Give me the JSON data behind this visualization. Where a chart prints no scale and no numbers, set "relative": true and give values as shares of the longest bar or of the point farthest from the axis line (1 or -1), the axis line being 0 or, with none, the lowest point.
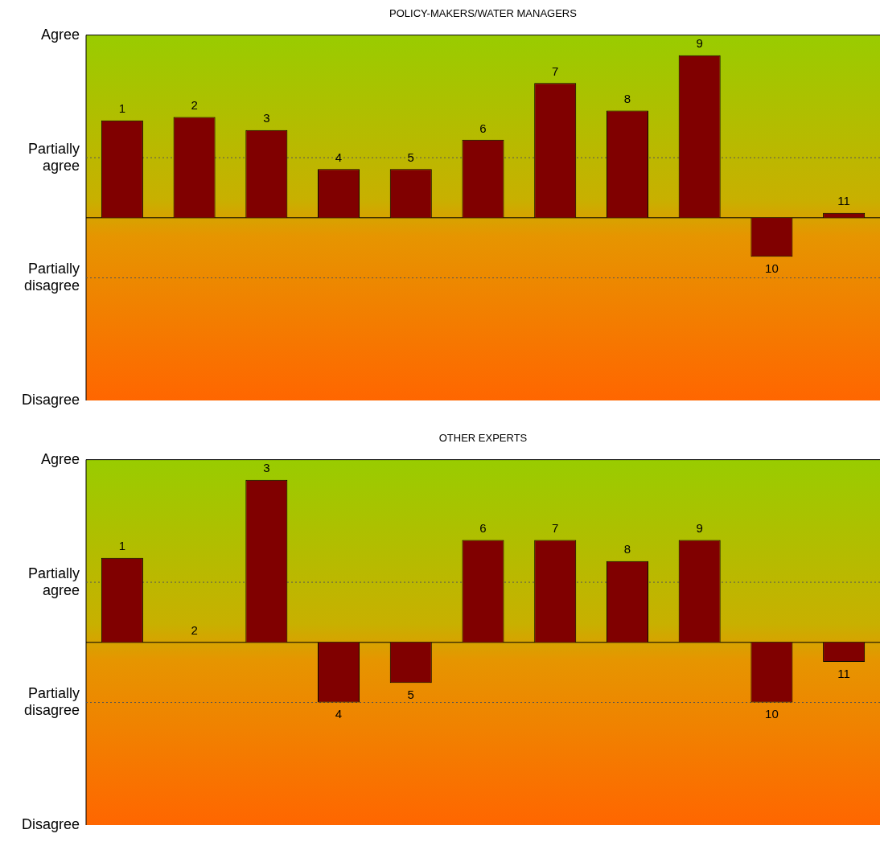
{
  "chart_data": [
    {
      "type": "bar",
      "title": "POLICY-MAKERS/WATER MANAGERS",
      "categories": [
        "1",
        "2",
        "3",
        "4",
        "5",
        "6",
        "7",
        "8",
        "9",
        "10",
        "11"
      ],
      "values": [
        0.6,
        0.62,
        0.54,
        0.3,
        0.3,
        0.48,
        0.83,
        0.66,
        1,
        -0.24,
        0.03
      ],
      "color": "#800000",
      "relative": true,
      "tick_labels": "y",
      "ref_lines": [
        {
          "axis": "y",
          "value": 0.37,
          "label": "Partially agree",
          "line_style": "dotted"
        },
        {
          "axis": "y",
          "value": -0.37,
          "label": "Partially disagree",
          "line_style": "dotted"
        }
      ],
      "annotations": [
        "Agree",
        "Disagree"
      ]
    },
    {
      "type": "bar",
      "title": "OTHER EXPERTS",
      "categories": [
        "1",
        "2",
        "3",
        "4",
        "5",
        "6",
        "7",
        "8",
        "9",
        "10",
        "11"
      ],
      "values": [
        0.52,
        0,
        1,
        -0.37,
        -0.25,
        0.63,
        0.63,
        0.5,
        0.63,
        -0.37,
        -0.12
      ],
      "color": "#800000",
      "relative": true,
      "tick_labels": "y",
      "ref_lines": [
        {
          "axis": "y",
          "value": 0.37,
          "label": "Partially agree",
          "line_style": "dotted"
        },
        {
          "axis": "y",
          "value": -0.37,
          "label": "Partially disagree",
          "line_style": "dotted"
        }
      ],
      "annotations": [
        "Agree",
        "Disagree"
      ]
    }
  ]
}
